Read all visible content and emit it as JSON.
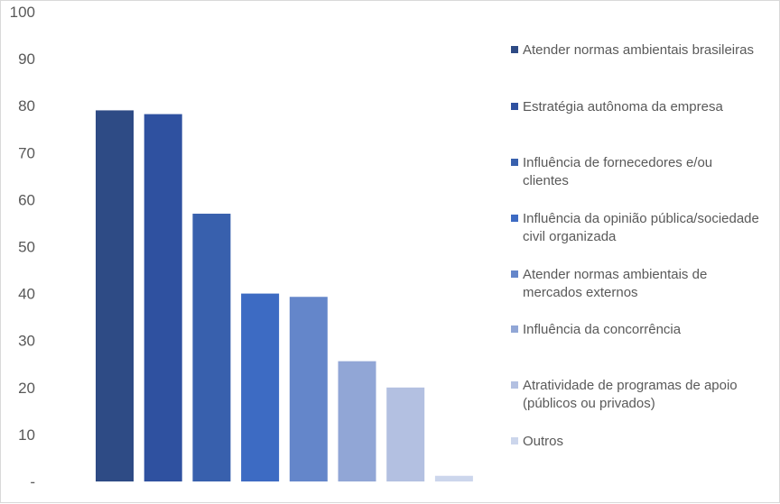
{
  "chart_data": {
    "type": "bar",
    "title": "",
    "xlabel": "",
    "ylabel": "",
    "ylim": [
      0,
      100
    ],
    "y_ticks": [
      "-",
      "10",
      "20",
      "30",
      "40",
      "50",
      "60",
      "70",
      "80",
      "90",
      "100"
    ],
    "grid": false,
    "legend_position": "right",
    "categories": [
      "Atender normas ambientais brasileiras",
      "Estratégia autônoma da empresa",
      "Influência de fornecedores e/ou clientes",
      "Influência da opinião pública/sociedade civil organizada",
      "Atender normas ambientais de mercados externos",
      "Influência da concorrência",
      "Atratividade de programas de apoio (públicos ou privados)",
      "Outros"
    ],
    "legend_lines": [
      [
        "Atender normas ambientais brasileiras"
      ],
      [
        "Estratégia autônoma da empresa"
      ],
      [
        "Influência de fornecedores e/ou",
        "clientes"
      ],
      [
        "Influência da opinião pública/sociedade",
        "civil organizada"
      ],
      [
        "Atender normas ambientais de",
        "mercados externos"
      ],
      [
        "Influência da concorrência"
      ],
      [
        "Atratividade de programas de apoio",
        "(públicos ou privados)"
      ],
      [
        "Outros"
      ]
    ],
    "values": [
      79,
      78.2,
      57,
      40,
      39.3,
      25.6,
      20,
      1.2
    ],
    "colors": [
      "#2e4b85",
      "#2f51a0",
      "#3860ad",
      "#3d6bc3",
      "#6486ca",
      "#91a6d6",
      "#b3c0e1",
      "#ccd6ec"
    ]
  }
}
